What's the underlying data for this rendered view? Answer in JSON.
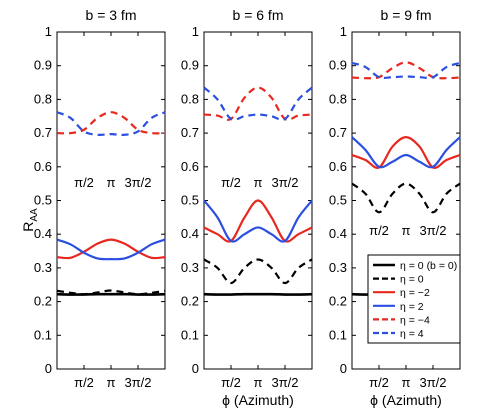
{
  "figure": {
    "ylabel_main": "R",
    "ylabel_sub": "AA",
    "xlabel": "ϕ (Azimuth)"
  },
  "chart_data": [
    {
      "type": "line",
      "title": "b = 3 fm",
      "xlabel": "",
      "ylabel": "R_AA",
      "xlim": [
        0,
        6.2832
      ],
      "ylim": [
        0,
        1
      ],
      "yticks": [
        "0",
        "0.1",
        "0.2",
        "0.3",
        "0.4",
        "0.5",
        "0.6",
        "0.7",
        "0.8",
        "0.9",
        "1"
      ],
      "xtick_labels": [
        "π/2",
        "π",
        "3π/2"
      ],
      "inner_labels": [
        "π/2",
        "π",
        "3π/2"
      ],
      "series": [
        {
          "name": "η = 0 (b = 0)",
          "color": "#000000",
          "dash": "solid",
          "width": 2.6,
          "x": [
            0,
            0.785,
            1.571,
            2.356,
            3.142,
            3.927,
            4.712,
            5.498,
            6.283
          ],
          "y": [
            0.222,
            0.221,
            0.221,
            0.222,
            0.222,
            0.222,
            0.221,
            0.221,
            0.222
          ]
        },
        {
          "name": "η = 0",
          "color": "#000000",
          "dash": "dash",
          "width": 2.2,
          "x": [
            0,
            0.785,
            1.571,
            2.356,
            3.142,
            3.927,
            4.712,
            5.498,
            6.283
          ],
          "y": [
            0.232,
            0.226,
            0.222,
            0.227,
            0.233,
            0.227,
            0.222,
            0.226,
            0.232
          ]
        },
        {
          "name": "η = −2",
          "color": "#e8281f",
          "dash": "solid",
          "width": 2.2,
          "x": [
            0,
            0.785,
            1.571,
            2.356,
            3.142,
            3.927,
            4.712,
            5.498,
            6.283
          ],
          "y": [
            0.332,
            0.33,
            0.348,
            0.372,
            0.384,
            0.372,
            0.348,
            0.33,
            0.332
          ]
        },
        {
          "name": "η = 2",
          "color": "#2b4fe0",
          "dash": "solid",
          "width": 2.2,
          "x": [
            0,
            0.785,
            1.571,
            2.356,
            3.142,
            3.927,
            4.712,
            5.498,
            6.283
          ],
          "y": [
            0.384,
            0.37,
            0.345,
            0.328,
            0.326,
            0.328,
            0.345,
            0.37,
            0.384
          ]
        },
        {
          "name": "η = −4",
          "color": "#e8281f",
          "dash": "dash",
          "width": 2.2,
          "x": [
            0,
            0.785,
            1.571,
            2.356,
            3.142,
            3.927,
            4.712,
            5.498,
            6.283
          ],
          "y": [
            0.7,
            0.7,
            0.71,
            0.745,
            0.762,
            0.745,
            0.71,
            0.7,
            0.7
          ]
        },
        {
          "name": "η = 4",
          "color": "#2b4fe0",
          "dash": "dash",
          "width": 2.2,
          "x": [
            0,
            0.785,
            1.571,
            2.356,
            3.142,
            3.927,
            4.712,
            5.498,
            6.283
          ],
          "y": [
            0.762,
            0.745,
            0.705,
            0.695,
            0.697,
            0.695,
            0.705,
            0.745,
            0.762
          ]
        }
      ]
    },
    {
      "type": "line",
      "title": "b = 6 fm",
      "xlabel": "ϕ (Azimuth)",
      "ylabel": "",
      "xlim": [
        0,
        6.2832
      ],
      "ylim": [
        0,
        1
      ],
      "yticks": [
        "0",
        "0.1",
        "0.2",
        "0.3",
        "0.4",
        "0.5",
        "0.6",
        "0.7",
        "0.8",
        "0.9",
        "1"
      ],
      "xtick_labels": [
        "π/2",
        "π",
        "3π/2"
      ],
      "inner_labels": [
        "π/2",
        "π",
        "3π/2"
      ],
      "series": [
        {
          "name": "η = 0 (b = 0)",
          "color": "#000000",
          "dash": "solid",
          "width": 2.6,
          "x": [
            0,
            0.785,
            1.571,
            2.356,
            3.142,
            3.927,
            4.712,
            5.498,
            6.283
          ],
          "y": [
            0.222,
            0.221,
            0.221,
            0.222,
            0.222,
            0.222,
            0.221,
            0.221,
            0.222
          ]
        },
        {
          "name": "η = 0",
          "color": "#000000",
          "dash": "dash",
          "width": 2.2,
          "x": [
            0,
            0.785,
            1.571,
            2.356,
            3.142,
            3.927,
            4.712,
            5.498,
            6.283
          ],
          "y": [
            0.325,
            0.3,
            0.255,
            0.3,
            0.325,
            0.3,
            0.255,
            0.3,
            0.325
          ]
        },
        {
          "name": "η = −2",
          "color": "#e8281f",
          "dash": "solid",
          "width": 2.2,
          "x": [
            0,
            0.785,
            1.571,
            2.356,
            3.142,
            3.927,
            4.712,
            5.498,
            6.283
          ],
          "y": [
            0.42,
            0.4,
            0.38,
            0.45,
            0.5,
            0.45,
            0.38,
            0.4,
            0.42
          ]
        },
        {
          "name": "η = 2",
          "color": "#2b4fe0",
          "dash": "solid",
          "width": 2.2,
          "x": [
            0,
            0.785,
            1.571,
            2.356,
            3.142,
            3.927,
            4.712,
            5.498,
            6.283
          ],
          "y": [
            0.5,
            0.45,
            0.38,
            0.4,
            0.42,
            0.4,
            0.38,
            0.45,
            0.5
          ]
        },
        {
          "name": "η = −4",
          "color": "#e8281f",
          "dash": "dash",
          "width": 2.2,
          "x": [
            0,
            0.785,
            1.571,
            2.356,
            3.142,
            3.927,
            4.712,
            5.498,
            6.283
          ],
          "y": [
            0.755,
            0.752,
            0.742,
            0.805,
            0.835,
            0.805,
            0.742,
            0.752,
            0.755
          ]
        },
        {
          "name": "η = 4",
          "color": "#2b4fe0",
          "dash": "dash",
          "width": 2.2,
          "x": [
            0,
            0.785,
            1.571,
            2.356,
            3.142,
            3.927,
            4.712,
            5.498,
            6.283
          ],
          "y": [
            0.835,
            0.8,
            0.742,
            0.75,
            0.755,
            0.75,
            0.742,
            0.8,
            0.835
          ]
        }
      ]
    },
    {
      "type": "line",
      "title": "b = 9 fm",
      "xlabel": "ϕ (Azimuth)",
      "ylabel": "",
      "xlim": [
        0,
        6.2832
      ],
      "ylim": [
        0,
        1
      ],
      "yticks": [
        "0",
        "0.1",
        "0.2",
        "0.3",
        "0.4",
        "0.5",
        "0.6",
        "0.7",
        "0.8",
        "0.9",
        "1"
      ],
      "xtick_labels": [
        "π/2",
        "π",
        "3π/2"
      ],
      "inner_labels": [
        "π/2",
        "π",
        "3π/2"
      ],
      "legend": {
        "placement": "lower-right"
      },
      "series": [
        {
          "name": "η = 0 (b = 0)",
          "color": "#000000",
          "dash": "solid",
          "width": 2.6,
          "x": [
            0,
            0.785,
            1.571,
            2.356,
            3.142,
            3.927,
            4.712,
            5.498,
            6.283
          ],
          "y": [
            0.222,
            0.221,
            0.221,
            0.222,
            0.222,
            0.222,
            0.221,
            0.221,
            0.222
          ]
        },
        {
          "name": "η = 0",
          "color": "#000000",
          "dash": "dash",
          "width": 2.2,
          "x": [
            0,
            0.785,
            1.571,
            2.356,
            3.142,
            3.927,
            4.712,
            5.498,
            6.283
          ],
          "y": [
            0.55,
            0.52,
            0.465,
            0.52,
            0.55,
            0.52,
            0.465,
            0.52,
            0.55
          ]
        },
        {
          "name": "η = −2",
          "color": "#e8281f",
          "dash": "solid",
          "width": 2.2,
          "x": [
            0,
            0.785,
            1.571,
            2.356,
            3.142,
            3.927,
            4.712,
            5.498,
            6.283
          ],
          "y": [
            0.635,
            0.62,
            0.598,
            0.66,
            0.688,
            0.66,
            0.598,
            0.62,
            0.635
          ]
        },
        {
          "name": "η = 2",
          "color": "#2b4fe0",
          "dash": "solid",
          "width": 2.2,
          "x": [
            0,
            0.785,
            1.571,
            2.356,
            3.142,
            3.927,
            4.712,
            5.498,
            6.283
          ],
          "y": [
            0.688,
            0.65,
            0.6,
            0.615,
            0.635,
            0.615,
            0.6,
            0.65,
            0.688
          ]
        },
        {
          "name": "η = −4",
          "color": "#e8281f",
          "dash": "dash",
          "width": 2.2,
          "x": [
            0,
            0.785,
            1.571,
            2.356,
            3.142,
            3.927,
            4.712,
            5.498,
            6.283
          ],
          "y": [
            0.865,
            0.863,
            0.866,
            0.893,
            0.91,
            0.893,
            0.866,
            0.863,
            0.865
          ]
        },
        {
          "name": "η = 4",
          "color": "#2b4fe0",
          "dash": "dash",
          "width": 2.2,
          "x": [
            0,
            0.785,
            1.571,
            2.356,
            3.142,
            3.927,
            4.712,
            5.498,
            6.283
          ],
          "y": [
            0.908,
            0.896,
            0.866,
            0.866,
            0.868,
            0.866,
            0.866,
            0.896,
            0.908
          ]
        }
      ]
    }
  ]
}
